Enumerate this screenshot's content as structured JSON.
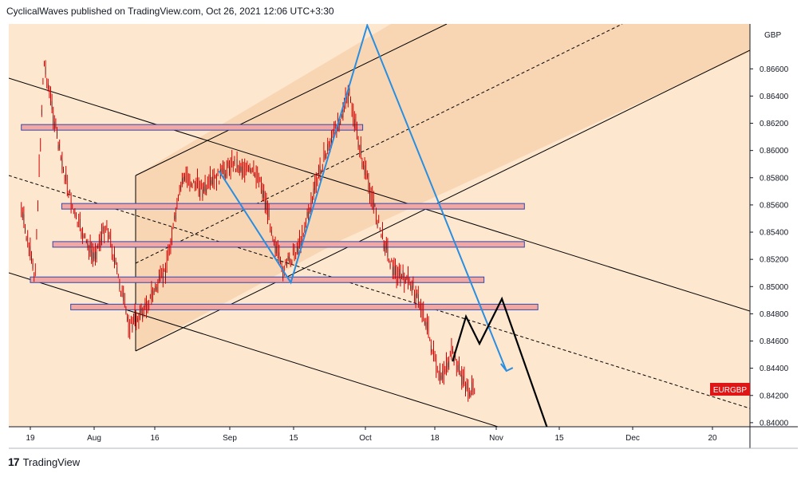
{
  "header": {
    "published_text": "CyclicalWaves published on TradingView.com, Oct 26, 2021 12:06 UTC+3:30"
  },
  "footer": {
    "logo_text": "TradingView"
  },
  "chart_data": {
    "type": "candlestick",
    "symbol_badge": "EURGBP",
    "currency": "GBP",
    "ylim": [
      0.8397,
      0.8693
    ],
    "y_ticks": [
      "0.86600",
      "0.86400",
      "0.86200",
      "0.86000",
      "0.85800",
      "0.85600",
      "0.85400",
      "0.85200",
      "0.85000",
      "0.84800",
      "0.84600",
      "0.84400",
      "0.84200",
      "0.84000"
    ],
    "x_ticks": [
      "19",
      "Aug",
      "16",
      "Sep",
      "15",
      "Oct",
      "18",
      "Nov",
      "15",
      "Dec",
      "20"
    ],
    "colors": {
      "candle": "#d50000",
      "fill": "#fde7cf",
      "channel_fill": "#f6c99c",
      "zone_fill": "#f1a7a3",
      "zone_border": "#3347a6",
      "path_blue": "#2a8ee0",
      "path_black": "#000000",
      "badge": "#e01515"
    },
    "price_path_approx": [
      {
        "date": "2021-07-17",
        "price": 0.8555
      },
      {
        "date": "2021-07-20",
        "price": 0.8505
      },
      {
        "date": "2021-07-22",
        "price": 0.8665
      },
      {
        "date": "2021-07-26",
        "price": 0.859
      },
      {
        "date": "2021-07-29",
        "price": 0.855
      },
      {
        "date": "2021-08-02",
        "price": 0.852
      },
      {
        "date": "2021-08-05",
        "price": 0.8545
      },
      {
        "date": "2021-08-10",
        "price": 0.847
      },
      {
        "date": "2021-08-13",
        "price": 0.848
      },
      {
        "date": "2021-08-18",
        "price": 0.851
      },
      {
        "date": "2021-08-22",
        "price": 0.858
      },
      {
        "date": "2021-08-27",
        "price": 0.857
      },
      {
        "date": "2021-09-02",
        "price": 0.859
      },
      {
        "date": "2021-09-08",
        "price": 0.858
      },
      {
        "date": "2021-09-13",
        "price": 0.851
      },
      {
        "date": "2021-09-17",
        "price": 0.853
      },
      {
        "date": "2021-09-22",
        "price": 0.859
      },
      {
        "date": "2021-09-28",
        "price": 0.864
      },
      {
        "date": "2021-10-01",
        "price": 0.859
      },
      {
        "date": "2021-10-05",
        "price": 0.854
      },
      {
        "date": "2021-10-08",
        "price": 0.851
      },
      {
        "date": "2021-10-12",
        "price": 0.85
      },
      {
        "date": "2021-10-15",
        "price": 0.8475
      },
      {
        "date": "2021-10-18",
        "price": 0.843
      },
      {
        "date": "2021-10-21",
        "price": 0.845
      },
      {
        "date": "2021-10-24",
        "price": 0.8425
      },
      {
        "date": "2021-10-26",
        "price": 0.842
      }
    ],
    "drawings": {
      "horizontal_zones": [
        {
          "price": 0.8617,
          "from": "2021-07-17",
          "to": "2021-10-01"
        },
        {
          "price": 0.8559,
          "from": "2021-07-26",
          "to": "2021-11-06"
        },
        {
          "price": 0.8531,
          "from": "2021-07-24",
          "to": "2021-11-06"
        },
        {
          "price": 0.8505,
          "from": "2021-07-19",
          "to": "2021-10-28"
        },
        {
          "price": 0.8485,
          "from": "2021-07-28",
          "to": "2021-11-09"
        }
      ],
      "blue_path": [
        {
          "date": "2021-08-30",
          "price": 0.8585
        },
        {
          "date": "2021-09-15",
          "price": 0.8503
        },
        {
          "date": "2021-10-02",
          "price": 0.8692
        },
        {
          "date": "2021-11-02",
          "price": 0.8438
        }
      ],
      "black_path": [
        {
          "date": "2021-10-21",
          "price": 0.8445
        },
        {
          "date": "2021-10-24",
          "price": 0.8478
        },
        {
          "date": "2021-10-27",
          "price": 0.8458
        },
        {
          "date": "2021-11-01",
          "price": 0.8491
        },
        {
          "date": "2021-11-11",
          "price": 0.8397
        }
      ]
    }
  }
}
